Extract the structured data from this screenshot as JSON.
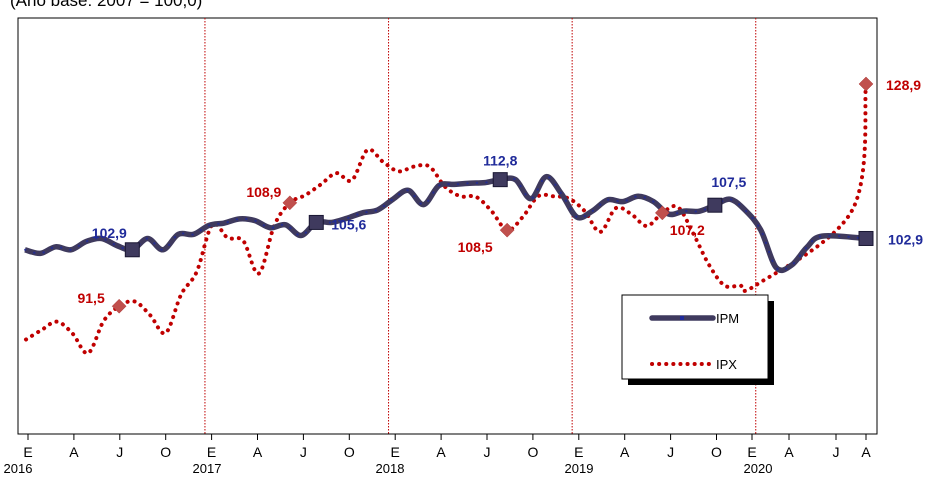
{
  "subtitle": "(Ano base: 2007 = 100,0)",
  "chart_data": {
    "type": "line",
    "x_month_labels": [
      "E",
      "A",
      "J",
      "O",
      "E",
      "A",
      "J",
      "O",
      "E",
      "A",
      "J",
      "O",
      "E",
      "A",
      "J",
      "O",
      "E",
      "A",
      "J",
      "A"
    ],
    "x_year_labels": [
      "2016",
      "2017",
      "2018",
      "2019",
      "2020"
    ],
    "grid": false,
    "year_separators": true,
    "legend_position": "bottom-right",
    "series": [
      {
        "name": "IPM",
        "color": "#3f3a5e",
        "label_color": "#1f2a9a",
        "style": "solid-thick",
        "values": [
          101.0,
          100.4,
          101.5,
          101.0,
          102.4,
          102.9,
          101.7,
          101.0,
          102.9,
          101.0,
          103.6,
          103.6,
          105.1,
          105.5,
          106.2,
          105.9,
          104.7,
          105.2,
          103.4,
          105.6,
          105.6,
          106.3,
          107.2,
          107.7,
          109.5,
          111.0,
          108.6,
          111.8,
          112.0,
          112.2,
          112.3,
          112.8,
          112.8,
          109.6,
          113.3,
          110.4,
          106.5,
          107.5,
          109.4,
          109.1,
          110.0,
          109.1,
          107.0,
          107.5,
          107.5,
          108.5,
          109.5,
          107.6,
          104.3,
          98.0,
          98.4,
          101.4,
          103.3,
          102.9
        ]
      },
      {
        "name": "IPX",
        "color": "#c00000",
        "label_color": "#c00000",
        "style": "dotted",
        "values": [
          85.9,
          87.5,
          88.9,
          86.9,
          83.6,
          89.0,
          91.5,
          92.3,
          90.0,
          87.0,
          93.5,
          97.3,
          105.2,
          103.0,
          102.5,
          97.0,
          105.1,
          108.9,
          110.2,
          112.0,
          113.9,
          112.7,
          117.8,
          115.8,
          114.2,
          115.0,
          115.0,
          111.6,
          110.0,
          109.9,
          107.5,
          104.3,
          106.5,
          110.0,
          110.0,
          109.6,
          107.5,
          104.0,
          108.0,
          107.0,
          105.0,
          107.2,
          108.2,
          103.7,
          98.5,
          95.0,
          95.0,
          95.0,
          107.6,
          128.9
        ]
      }
    ],
    "annotations": [
      {
        "series": "IPM",
        "text": "102,9",
        "value": 102.9
      },
      {
        "series": "IPM",
        "text": "105,6",
        "value": 105.6
      },
      {
        "series": "IPM",
        "text": "112,8",
        "value": 112.8
      },
      {
        "series": "IPM",
        "text": "107,5",
        "value": 107.5
      },
      {
        "series": "IPM",
        "text": "102,9",
        "value": 102.9
      },
      {
        "series": "IPX",
        "text": "91,5",
        "value": 91.5
      },
      {
        "series": "IPX",
        "text": "108,9",
        "value": 108.9
      },
      {
        "series": "IPX",
        "text": "108,5",
        "value": 108.5
      },
      {
        "series": "IPX",
        "text": "107,2",
        "value": 107.2
      },
      {
        "series": "IPX",
        "text": "128,9",
        "value": 128.9
      }
    ]
  }
}
